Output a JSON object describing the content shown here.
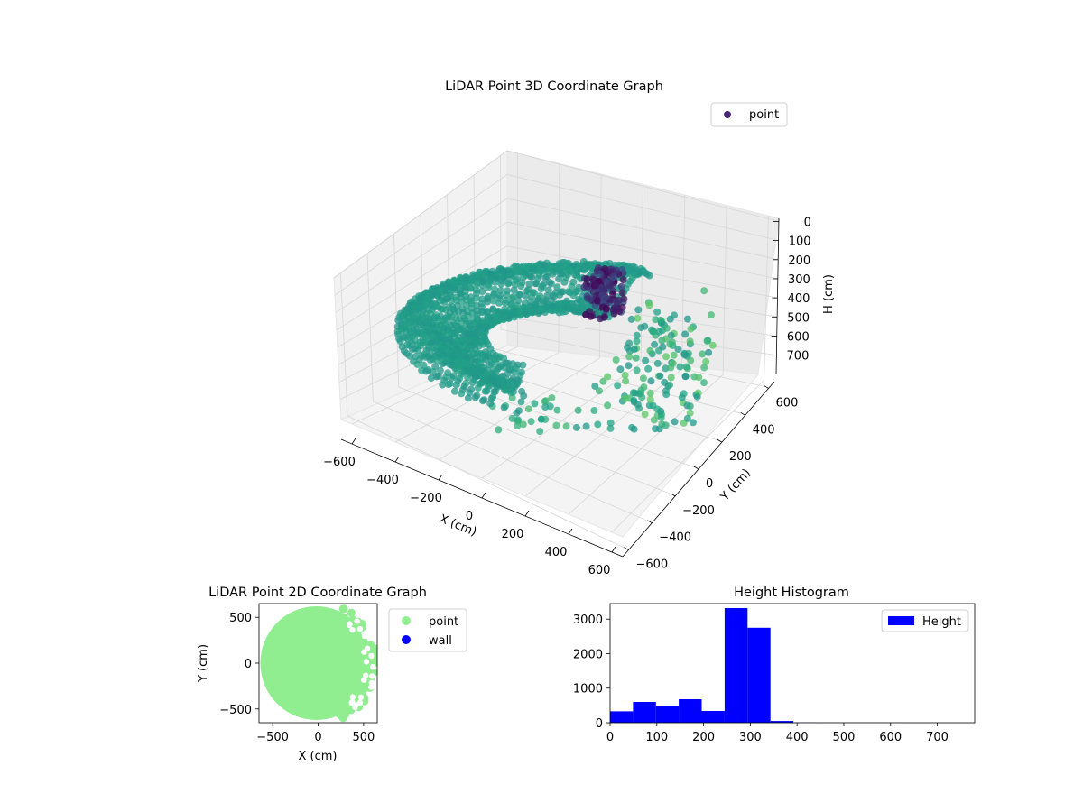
{
  "colors": {
    "viridis_dark": "#440154",
    "viridis_green": "#21a685",
    "point_2d": "#90ee90",
    "wall": "#0000ff",
    "hist": "#0000ff",
    "legend_point_3d": "#482576"
  },
  "chart_data": [
    {
      "id": "lidar3d",
      "type": "scatter",
      "title": "LiDAR Point 3D Coordinate Graph",
      "xlabel": "X (cm)",
      "ylabel": "Y (cm)",
      "zlabel": "H (cm)",
      "xlim": [
        -650,
        650
      ],
      "ylim": [
        -650,
        650
      ],
      "zlim": [
        0,
        760
      ],
      "z_inverted": true,
      "xticks": [
        "−600",
        "−400",
        "−200",
        "0",
        "200",
        "400",
        "600"
      ],
      "yticks": [
        "−600",
        "−400",
        "−200",
        "0",
        "200",
        "400",
        "600"
      ],
      "zticks": [
        "0",
        "100",
        "200",
        "300",
        "400",
        "500",
        "600",
        "700"
      ],
      "legend": {
        "label": "point",
        "position": "upper right"
      },
      "grid": true,
      "colormap": "viridis",
      "series": [
        {
          "name": "point",
          "shape": "bowl-shaped ring of points, radius ≈ 200–650 cm, height ≈ 250–400 cm"
        }
      ]
    },
    {
      "id": "lidar2d",
      "type": "scatter",
      "title": "LiDAR Point 2D Coordinate Graph",
      "xlabel": "X (cm)",
      "ylabel": "Y (cm)",
      "xlim": [
        -650,
        650
      ],
      "ylim": [
        -650,
        650
      ],
      "xticks": [
        "−500",
        "0",
        "500"
      ],
      "yticks": [
        "500",
        "0",
        "−500"
      ],
      "legend": {
        "entries": [
          "point",
          "wall"
        ],
        "position": "outside upper right"
      },
      "series": [
        {
          "name": "point",
          "shape": "filled disk of points, radius ≈ 620 cm"
        },
        {
          "name": "wall",
          "points": []
        }
      ]
    },
    {
      "id": "hist",
      "type": "bar",
      "title": "Height Histogram",
      "xlabel": "",
      "ylabel": "",
      "xlim": [
        0,
        780
      ],
      "ylim": [
        0,
        3450
      ],
      "xticks": [
        "0",
        "100",
        "200",
        "300",
        "400",
        "500",
        "600",
        "700"
      ],
      "yticks": [
        "0",
        "1000",
        "2000",
        "3000"
      ],
      "legend": {
        "label": "Height",
        "position": "upper right"
      },
      "bins": [
        {
          "x0": 0,
          "x1": 49,
          "count": 330
        },
        {
          "x0": 49,
          "x1": 98,
          "count": 600
        },
        {
          "x0": 98,
          "x1": 147,
          "count": 470
        },
        {
          "x0": 147,
          "x1": 196,
          "count": 680
        },
        {
          "x0": 196,
          "x1": 245,
          "count": 340
        },
        {
          "x0": 245,
          "x1": 294,
          "count": 3320
        },
        {
          "x0": 294,
          "x1": 343,
          "count": 2750
        },
        {
          "x0": 343,
          "x1": 392,
          "count": 50
        },
        {
          "x0": 392,
          "x1": 441,
          "count": 5
        },
        {
          "x0": 441,
          "x1": 490,
          "count": 3
        },
        {
          "x0": 490,
          "x1": 539,
          "count": 2
        },
        {
          "x0": 539,
          "x1": 588,
          "count": 2
        },
        {
          "x0": 588,
          "x1": 637,
          "count": 2
        },
        {
          "x0": 637,
          "x1": 686,
          "count": 1
        },
        {
          "x0": 686,
          "x1": 735,
          "count": 1
        },
        {
          "x0": 735,
          "x1": 784,
          "count": 1
        }
      ]
    }
  ]
}
